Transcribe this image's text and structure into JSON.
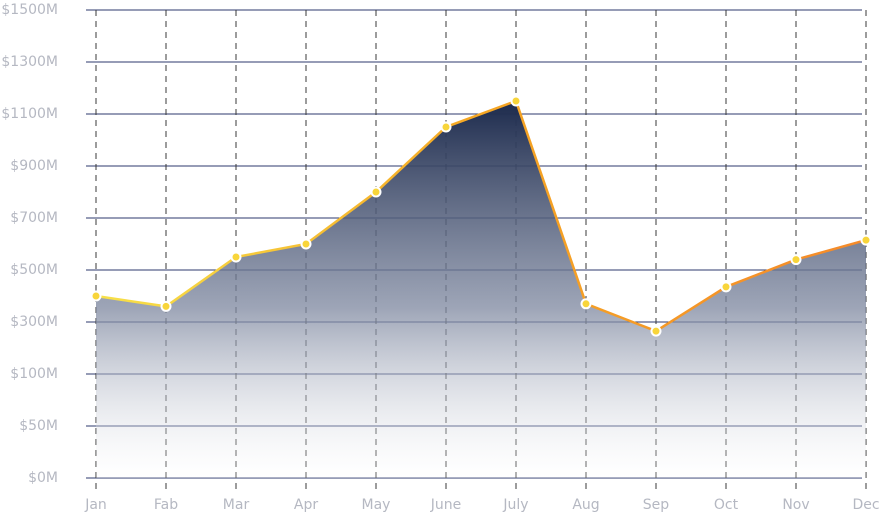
{
  "chart_data": {
    "type": "area",
    "categories": [
      "Jan",
      "Fab",
      "Mar",
      "Apr",
      "May",
      "June",
      "July",
      "Aug",
      "Sep",
      "Oct",
      "Nov",
      "Dec"
    ],
    "values": [
      400,
      360,
      550,
      600,
      800,
      1050,
      1150,
      370,
      265,
      435,
      540,
      615
    ],
    "color": "#f5a623",
    "ylim": [
      0,
      1500
    ],
    "yticks": [
      {
        "value": 0,
        "label": "$0M"
      },
      {
        "value": 50,
        "label": "$50M"
      },
      {
        "value": 100,
        "label": "$100M"
      },
      {
        "value": 300,
        "label": "$300M"
      },
      {
        "value": 500,
        "label": "$500M"
      },
      {
        "value": 700,
        "label": "$700M"
      },
      {
        "value": 900,
        "label": "$900M"
      },
      {
        "value": 1100,
        "label": "$1100M"
      },
      {
        "value": 1300,
        "label": "$1300M"
      },
      {
        "value": 1500,
        "label": "$1500M"
      }
    ],
    "grid": true
  }
}
